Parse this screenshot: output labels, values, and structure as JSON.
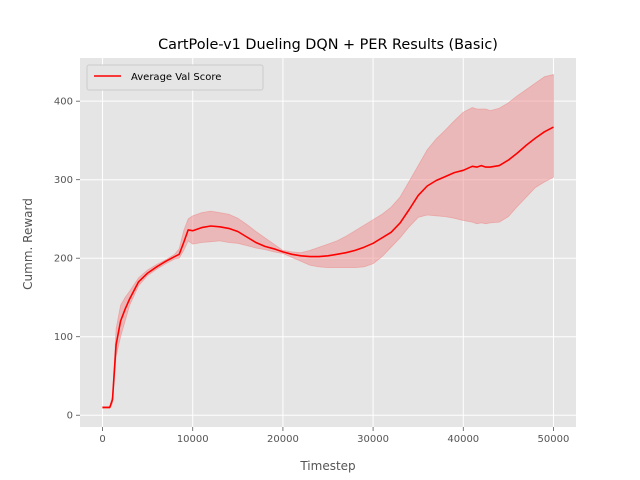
{
  "chart_data": {
    "type": "line",
    "title": "CartPole-v1 Dueling DQN + PER Results (Basic)",
    "xlabel": "Timestep",
    "ylabel": "Cumm. Reward",
    "xlim": [
      -2500,
      52500
    ],
    "ylim": [
      -15,
      455
    ],
    "xticks": [
      0,
      10000,
      20000,
      30000,
      40000,
      50000
    ],
    "yticks": [
      0,
      100,
      200,
      300,
      400
    ],
    "grid": true,
    "legend_position": "upper-left",
    "series": [
      {
        "name": "Average Val Score",
        "color": "#ff0000",
        "band_color": "#f08080",
        "x": [
          0,
          500,
          800,
          1100,
          1500,
          2000,
          2500,
          3000,
          4000,
          5000,
          6000,
          7000,
          8000,
          8500,
          9000,
          9500,
          10000,
          11000,
          12000,
          13000,
          14000,
          15000,
          16000,
          17000,
          18000,
          19000,
          20000,
          21000,
          22000,
          23000,
          24000,
          25000,
          26000,
          27000,
          28000,
          29000,
          30000,
          31000,
          32000,
          33000,
          34000,
          35000,
          36000,
          37000,
          38000,
          39000,
          40000,
          41000,
          41500,
          42000,
          42500,
          43000,
          44000,
          45000,
          46000,
          47000,
          48000,
          49000,
          50000
        ],
        "y": [
          10,
          10,
          10,
          20,
          90,
          120,
          135,
          148,
          170,
          181,
          189,
          196,
          202,
          205,
          220,
          236,
          235,
          239,
          241,
          240,
          238,
          234,
          227,
          220,
          215,
          212,
          208,
          205,
          203,
          202,
          202,
          203,
          205,
          207,
          210,
          214,
          219,
          226,
          233,
          245,
          262,
          280,
          292,
          299,
          304,
          309,
          312,
          317,
          316,
          318,
          316,
          316,
          318,
          325,
          334,
          344,
          353,
          361,
          367
        ],
        "upper": [
          11,
          11,
          11,
          25,
          110,
          140,
          150,
          158,
          175,
          185,
          192,
          198,
          205,
          212,
          235,
          250,
          254,
          258,
          260,
          258,
          256,
          251,
          243,
          234,
          226,
          218,
          210,
          208,
          207,
          210,
          214,
          218,
          222,
          228,
          235,
          242,
          249,
          256,
          265,
          278,
          298,
          318,
          338,
          352,
          363,
          375,
          386,
          392,
          390,
          390,
          390,
          388,
          391,
          398,
          407,
          415,
          423,
          431,
          434
        ],
        "lower": [
          9,
          9,
          9,
          15,
          75,
          100,
          120,
          140,
          165,
          178,
          186,
          193,
          199,
          200,
          210,
          222,
          218,
          220,
          221,
          222,
          220,
          219,
          216,
          213,
          211,
          208,
          206,
          201,
          196,
          191,
          189,
          188,
          188,
          188,
          188,
          189,
          193,
          202,
          214,
          226,
          240,
          252,
          255,
          254,
          253,
          251,
          248,
          246,
          244,
          245,
          244,
          245,
          246,
          253,
          266,
          278,
          290,
          297,
          303
        ]
      }
    ]
  }
}
